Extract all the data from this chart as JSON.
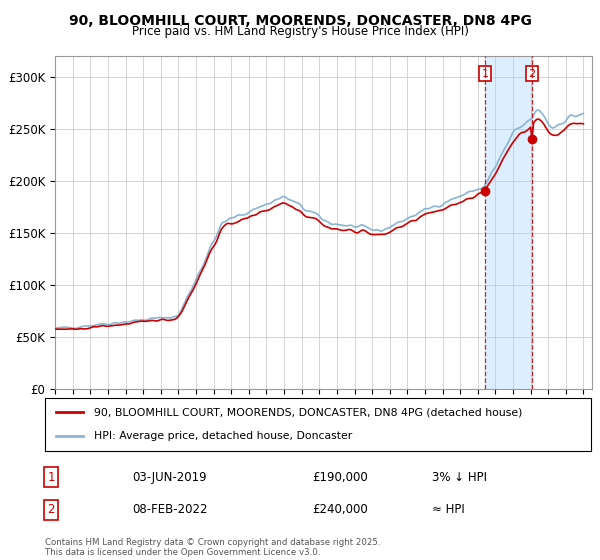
{
  "title_line1": "90, BLOOMHILL COURT, MOORENDS, DONCASTER, DN8 4PG",
  "title_line2": "Price paid vs. HM Land Registry's House Price Index (HPI)",
  "ylim": [
    0,
    320000
  ],
  "yticks": [
    0,
    50000,
    100000,
    150000,
    200000,
    250000,
    300000
  ],
  "ytick_labels": [
    "£0",
    "£50K",
    "£100K",
    "£150K",
    "£200K",
    "£250K",
    "£300K"
  ],
  "hpi_color": "#8ab4d4",
  "price_color": "#cc0000",
  "sale1_date": 2019.42,
  "sale1_price": 190000,
  "sale2_date": 2022.08,
  "sale2_price": 240000,
  "legend_label1": "90, BLOOMHILL COURT, MOORENDS, DONCASTER, DN8 4PG (detached house)",
  "legend_label2": "HPI: Average price, detached house, Doncaster",
  "table_row1": [
    "1",
    "03-JUN-2019",
    "£190,000",
    "3% ↓ HPI"
  ],
  "table_row2": [
    "2",
    "08-FEB-2022",
    "£240,000",
    "≈ HPI"
  ],
  "footnote": "Contains HM Land Registry data © Crown copyright and database right 2025.\nThis data is licensed under the Open Government Licence v3.0.",
  "background_color": "#ffffff",
  "grid_color": "#cccccc",
  "shade_color": "#ddeeff"
}
